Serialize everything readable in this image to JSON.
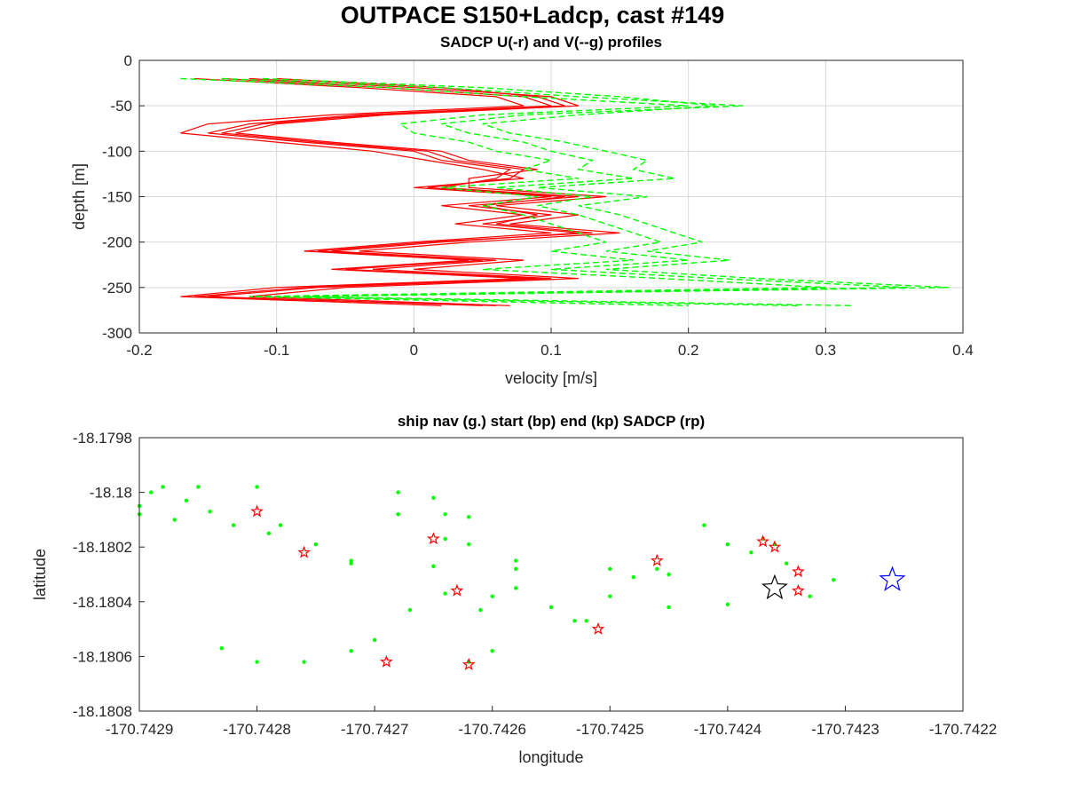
{
  "figure": {
    "title": "OUTPACE S150+Ladcp, cast #149"
  },
  "chart_data": [
    {
      "type": "line",
      "title": "SADCP U(-r) and V(--g) profiles",
      "xlabel": "velocity [m/s]",
      "ylabel": "depth [m]",
      "xlim": [
        -0.2,
        0.4
      ],
      "ylim": [
        -300,
        0
      ],
      "xticks": [
        "-0.2",
        "-0.1",
        "0",
        "0.1",
        "0.2",
        "0.3",
        "0.4"
      ],
      "yticks": [
        "0",
        "-50",
        "-100",
        "-150",
        "-200",
        "-250",
        "-300"
      ],
      "grid": true,
      "colors": {
        "u": "#ff0000",
        "v": "#00ff00"
      },
      "depth": [
        -20,
        -30,
        -40,
        -50,
        -60,
        -70,
        -80,
        -90,
        -100,
        -110,
        -120,
        -130,
        -140,
        -150,
        -160,
        -170,
        -180,
        -190,
        -200,
        -210,
        -220,
        -230,
        -240,
        -250,
        -260,
        -270
      ],
      "series": [
        {
          "style": "solid",
          "color": "#ff0000",
          "values": [
            -0.16,
            -0.04,
            0.06,
            0.08,
            -0.06,
            -0.15,
            -0.17,
            -0.1,
            -0.03,
            0.01,
            0.05,
            0.08,
            0.0,
            0.1,
            0.02,
            0.08,
            0.03,
            0.1,
            0.0,
            -0.08,
            0.04,
            -0.06,
            0.08,
            -0.1,
            -0.17,
            0.02
          ]
        },
        {
          "style": "solid",
          "color": "#ff0000",
          "values": [
            -0.14,
            -0.02,
            0.08,
            0.1,
            -0.04,
            -0.12,
            -0.15,
            -0.08,
            0.0,
            0.02,
            0.07,
            0.06,
            0.02,
            0.12,
            0.04,
            0.1,
            0.05,
            0.12,
            0.02,
            -0.06,
            0.06,
            -0.03,
            0.1,
            -0.07,
            -0.15,
            0.05
          ]
        },
        {
          "style": "solid",
          "color": "#ff0000",
          "values": [
            -0.12,
            0.0,
            0.1,
            0.12,
            -0.02,
            -0.1,
            -0.13,
            -0.06,
            0.02,
            0.04,
            0.09,
            0.04,
            0.04,
            0.14,
            0.06,
            0.12,
            0.07,
            0.15,
            0.04,
            -0.04,
            0.08,
            0.0,
            0.12,
            -0.05,
            -0.12,
            0.07
          ]
        },
        {
          "style": "solid",
          "color": "#ff0000",
          "values": [
            -0.1,
            0.02,
            0.09,
            0.11,
            -0.03,
            -0.11,
            -0.14,
            -0.07,
            0.01,
            0.03,
            0.08,
            0.07,
            0.01,
            0.11,
            0.05,
            0.09,
            0.06,
            0.13,
            0.01,
            -0.07,
            0.05,
            -0.05,
            0.09,
            -0.08,
            -0.16,
            0.06
          ]
        },
        {
          "style": "dashed",
          "color": "#00ff00",
          "values": [
            -0.17,
            -0.02,
            0.08,
            0.2,
            0.05,
            -0.01,
            0.0,
            0.04,
            0.06,
            0.1,
            0.08,
            0.12,
            0.02,
            0.09,
            0.05,
            0.08,
            0.1,
            0.12,
            0.14,
            0.1,
            0.16,
            0.05,
            0.18,
            0.3,
            -0.12,
            0.2
          ]
        },
        {
          "style": "dashed",
          "color": "#00ff00",
          "values": [
            -0.14,
            0.02,
            0.12,
            0.24,
            0.08,
            0.02,
            0.04,
            0.08,
            0.1,
            0.13,
            0.12,
            0.16,
            0.06,
            0.13,
            0.09,
            0.12,
            0.14,
            0.16,
            0.18,
            0.14,
            0.2,
            0.1,
            0.22,
            0.36,
            -0.1,
            0.28
          ]
        },
        {
          "style": "dashed",
          "color": "#00ff00",
          "values": [
            -0.11,
            0.05,
            0.15,
            0.22,
            0.12,
            0.05,
            0.07,
            0.11,
            0.14,
            0.17,
            0.16,
            0.19,
            0.09,
            0.17,
            0.12,
            0.15,
            0.17,
            0.19,
            0.21,
            0.17,
            0.23,
            0.14,
            0.25,
            0.39,
            -0.08,
            0.32
          ]
        }
      ]
    },
    {
      "type": "scatter",
      "title": "ship nav (g.) start (bp) end (kp) SADCP (rp)",
      "xlabel": "longitude",
      "ylabel": "latitude",
      "xlim": [
        -170.7429,
        -170.7422
      ],
      "ylim": [
        -18.1808,
        -18.1798
      ],
      "xticks": [
        "-170.7429",
        "-170.7428",
        "-170.7427",
        "-170.7426",
        "-170.7425",
        "-170.7424",
        "-170.7423",
        "-170.7422"
      ],
      "yticks": [
        "-18.1798",
        "-18.18",
        "-18.1802",
        "-18.1804",
        "-18.1806",
        "-18.1808"
      ],
      "grid": false,
      "series": [
        {
          "name": "ship nav",
          "marker": "dot",
          "color": "#00ff00",
          "x": [
            -170.7429,
            -170.74289,
            -170.74288,
            -170.74286,
            -170.74285,
            -170.74284,
            -170.74282,
            -170.7428,
            -170.74279,
            -170.74275,
            -170.74272,
            -170.74268,
            -170.74264,
            -170.74262,
            -170.74258,
            -170.74255,
            -170.74253,
            -170.7425,
            -170.74245,
            -170.7424,
            -170.74238,
            -170.74236,
            -170.74235,
            -170.74233,
            -170.74231,
            -170.74272,
            -170.74276,
            -170.7428,
            -170.74283,
            -170.74262,
            -170.7426,
            -170.74258,
            -170.74262,
            -170.74265,
            -170.74268,
            -170.74272,
            -170.7427,
            -170.74267,
            -170.74264,
            -170.74261,
            -170.7426,
            -170.74252,
            -170.7425,
            -170.74248,
            -170.74246,
            -170.7424,
            -170.74237,
            -170.74242,
            -170.7429,
            -170.74287,
            -170.74278,
            -170.74265,
            -170.74258,
            -170.74245,
            -170.74264
          ],
          "y": [
            -18.18005,
            -18.18,
            -18.17998,
            -18.18003,
            -18.17998,
            -18.18007,
            -18.18012,
            -18.17998,
            -18.18015,
            -18.18019,
            -18.18026,
            -18.18,
            -18.18017,
            -18.18019,
            -18.18028,
            -18.18042,
            -18.18047,
            -18.18028,
            -18.1803,
            -18.18041,
            -18.18022,
            -18.18019,
            -18.18026,
            -18.18038,
            -18.18032,
            -18.18058,
            -18.18062,
            -18.18062,
            -18.18057,
            -18.18062,
            -18.18038,
            -18.18025,
            -18.18009,
            -18.18002,
            -18.18008,
            -18.18025,
            -18.18054,
            -18.18043,
            -18.18037,
            -18.18043,
            -18.18058,
            -18.18047,
            -18.18038,
            -18.18031,
            -18.18028,
            -18.18019,
            -18.18017,
            -18.18012,
            -18.18008,
            -18.1801,
            -18.18012,
            -18.18027,
            -18.18035,
            -18.18042,
            -18.18008
          ]
        },
        {
          "name": "SADCP",
          "marker": "star-small",
          "color": "#ff0000",
          "x": [
            -170.7428,
            -170.74276,
            -170.74265,
            -170.74263,
            -170.74269,
            -170.74262,
            -170.74251,
            -170.74246,
            -170.74237,
            -170.74236,
            -170.74234,
            -170.74234
          ],
          "y": [
            -18.18007,
            -18.18022,
            -18.18017,
            -18.18036,
            -18.18062,
            -18.18063,
            -18.1805,
            -18.18025,
            -18.18018,
            -18.1802,
            -18.18029,
            -18.18036
          ]
        },
        {
          "name": "start",
          "marker": "star-large",
          "color": "#0000ff",
          "x": [
            -170.74226
          ],
          "y": [
            -18.18032
          ]
        },
        {
          "name": "end",
          "marker": "star-large",
          "color": "#000000",
          "x": [
            -170.74236
          ],
          "y": [
            -18.18035
          ]
        }
      ]
    }
  ]
}
